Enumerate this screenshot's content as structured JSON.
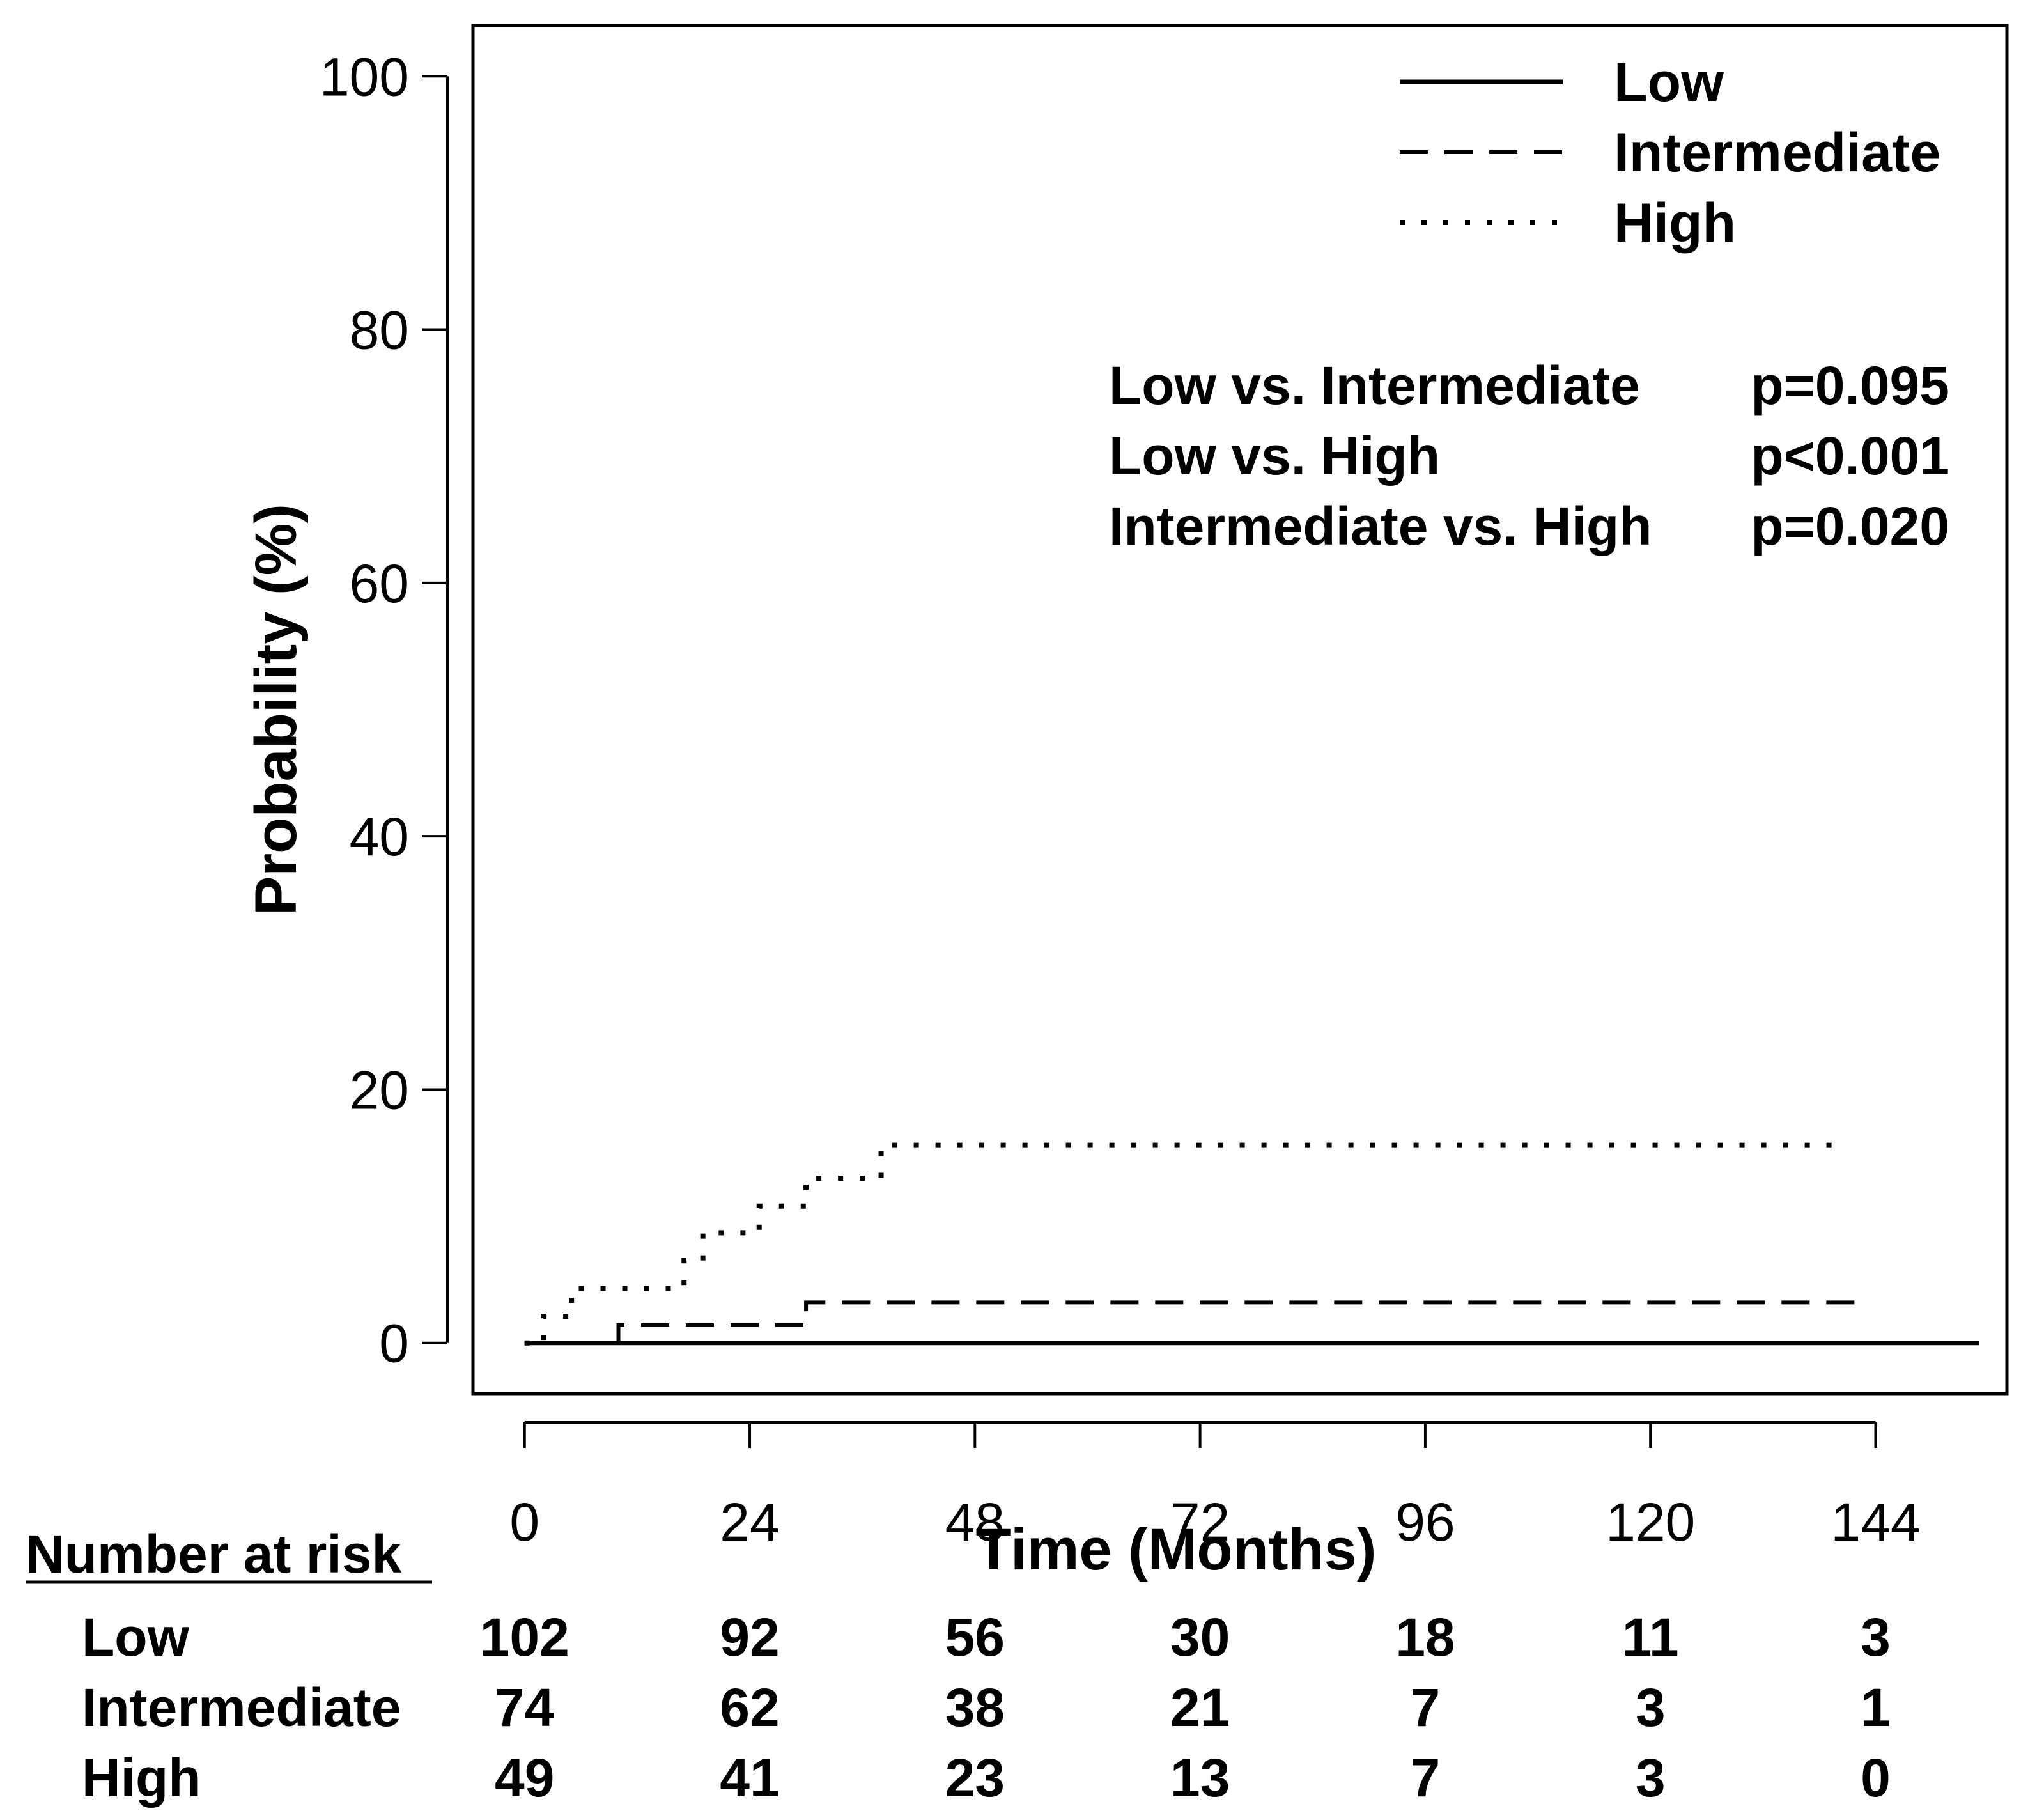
{
  "chart_data": {
    "type": "line",
    "subtype": "kaplan-meier cumulative incidence",
    "xlabel": "Time (Months)",
    "ylabel": "Probability (%)",
    "xlim": [
      -5.5,
      158
    ],
    "ylim": [
      -4,
      104
    ],
    "xticks": [
      0,
      24,
      48,
      72,
      96,
      120,
      144
    ],
    "yticks": [
      0,
      20,
      40,
      60,
      80,
      100
    ],
    "grid": false,
    "legend": {
      "position": "top-right"
    },
    "series": [
      {
        "name": "Low",
        "style": "solid",
        "x": [
          0,
          155
        ],
        "y": [
          0,
          0
        ]
      },
      {
        "name": "Intermediate",
        "style": "dashed",
        "x": [
          0,
          10,
          30,
          143
        ],
        "y": [
          0,
          1.4,
          3.2,
          3.2
        ]
      },
      {
        "name": "High",
        "style": "dotted",
        "x": [
          0,
          2,
          5,
          17,
          19,
          25,
          30,
          38,
          140
        ],
        "y": [
          0,
          2.1,
          4.3,
          6.5,
          8.7,
          10.8,
          13.0,
          15.6,
          15.6
        ]
      }
    ],
    "comparisons": [
      {
        "label": "Low vs. Intermediate",
        "p": "p=0.095"
      },
      {
        "label": "Low vs. High",
        "p": "p<0.001"
      },
      {
        "label": "Intermediate vs. High",
        "p": "p=0.020"
      }
    ],
    "risk_table": {
      "title": "Number at risk",
      "times": [
        0,
        24,
        48,
        72,
        96,
        120,
        144
      ],
      "rows": [
        {
          "label": "Low",
          "values": [
            "102",
            "92",
            "56",
            "30",
            "18",
            "11",
            "3"
          ]
        },
        {
          "label": "Intermediate",
          "values": [
            "74",
            "62",
            "38",
            "21",
            "7",
            "3",
            "1"
          ]
        },
        {
          "label": "High",
          "values": [
            "49",
            "41",
            "23",
            "13",
            "7",
            "3",
            "0"
          ]
        }
      ]
    }
  }
}
